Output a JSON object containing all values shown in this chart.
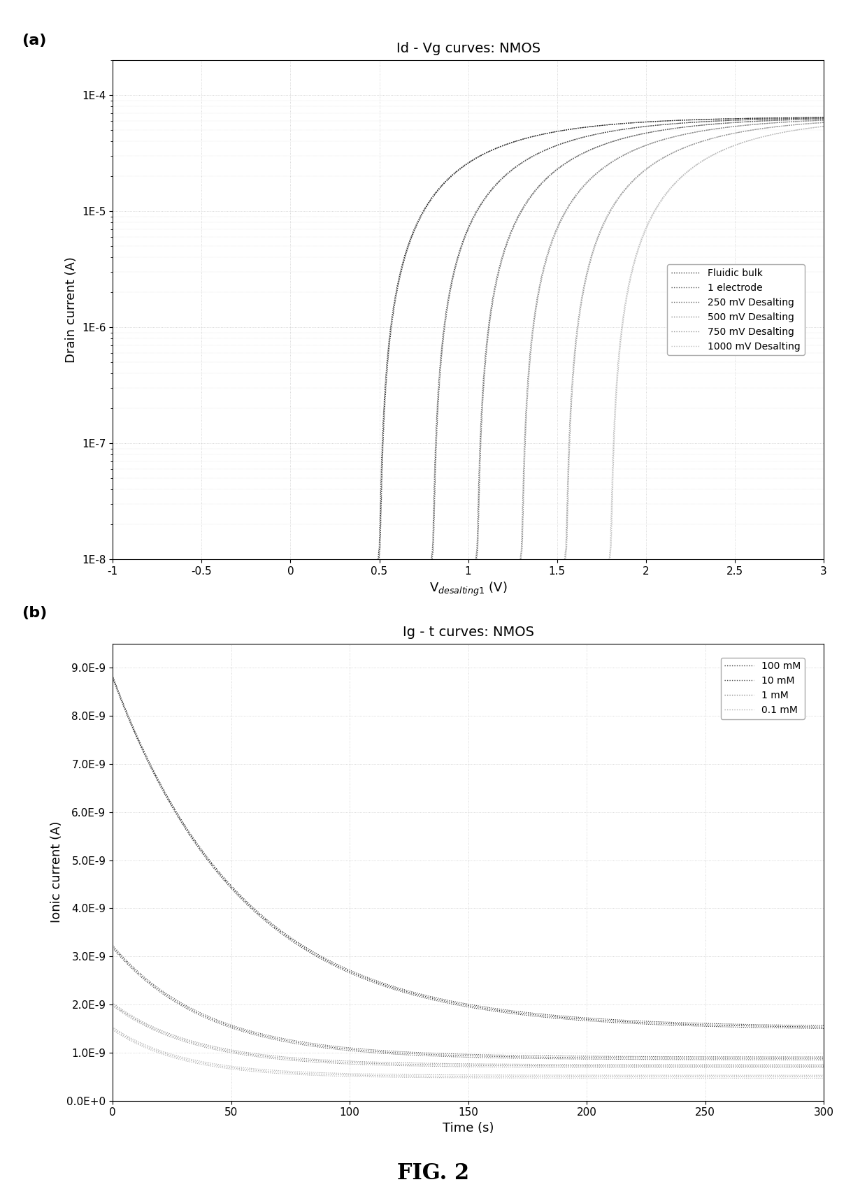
{
  "fig_title": "FIG. 2",
  "panel_a": {
    "title": "Id - Vg curves: NMOS",
    "xlabel": "V$_{desalting1}$ (V)",
    "ylabel": "Drain current (A)",
    "xlim": [
      -1.0,
      3.0
    ],
    "ylim_log": [
      1e-08,
      0.0002
    ],
    "yticks": [
      1e-08,
      1e-07,
      1e-06,
      1e-05,
      0.0001
    ],
    "ytick_labels": [
      "1E-8",
      "1E-7",
      "1E-6",
      "1E-5",
      "1E-4"
    ],
    "xticks": [
      -1.0,
      -0.5,
      0.0,
      0.5,
      1.0,
      1.5,
      2.0,
      2.5,
      3.0
    ],
    "curves": [
      {
        "label": "Fluidic bulk",
        "vth": 0.5,
        "color": "#333333"
      },
      {
        "label": "1 electrode",
        "vth": 0.8,
        "color": "#555555"
      },
      {
        "label": "250 mV Desalting",
        "vth": 1.05,
        "color": "#666666"
      },
      {
        "label": "500 mV Desalting",
        "vth": 1.3,
        "color": "#888888"
      },
      {
        "label": "750 mV Desalting",
        "vth": 1.55,
        "color": "#999999"
      },
      {
        "label": "1000 mV Desalting",
        "vth": 1.8,
        "color": "#bbbbbb"
      }
    ]
  },
  "panel_b": {
    "title": "Ig - t curves: NMOS",
    "xlabel": "Time (s)",
    "ylabel": "Ionic current (A)",
    "xlim": [
      0,
      300
    ],
    "ylim": [
      0.0,
      9.5e-09
    ],
    "yticks": [
      0.0,
      1e-09,
      2e-09,
      3e-09,
      4e-09,
      5e-09,
      6e-09,
      7e-09,
      8e-09,
      9e-09
    ],
    "ytick_labels": [
      "0.0E+0",
      "1.0E-9",
      "2.0E-9",
      "3.0E-9",
      "4.0E-9",
      "5.0E-9",
      "6.0E-9",
      "7.0E-9",
      "8.0E-9",
      "9.0E-9"
    ],
    "xticks": [
      0,
      50,
      100,
      150,
      200,
      250,
      300
    ],
    "curves": [
      {
        "label": "100 mM",
        "I0": 8.8e-09,
        "Iinf": 1.5e-09,
        "tau": 55,
        "color": "#333333"
      },
      {
        "label": "10 mM",
        "I0": 3.2e-09,
        "Iinf": 8.8e-10,
        "tau": 40,
        "color": "#555555"
      },
      {
        "label": "1 mM",
        "I0": 2e-09,
        "Iinf": 7.2e-10,
        "tau": 35,
        "color": "#888888"
      },
      {
        "label": "0.1 mM",
        "I0": 1.5e-09,
        "Iinf": 5e-10,
        "tau": 30,
        "color": "#aaaaaa"
      }
    ]
  },
  "background_color": "#ffffff",
  "grid_color": "#cccccc",
  "label_fontsize": 13,
  "tick_fontsize": 11,
  "title_fontsize": 14,
  "legend_fontsize": 10,
  "panel_label_fontsize": 16
}
